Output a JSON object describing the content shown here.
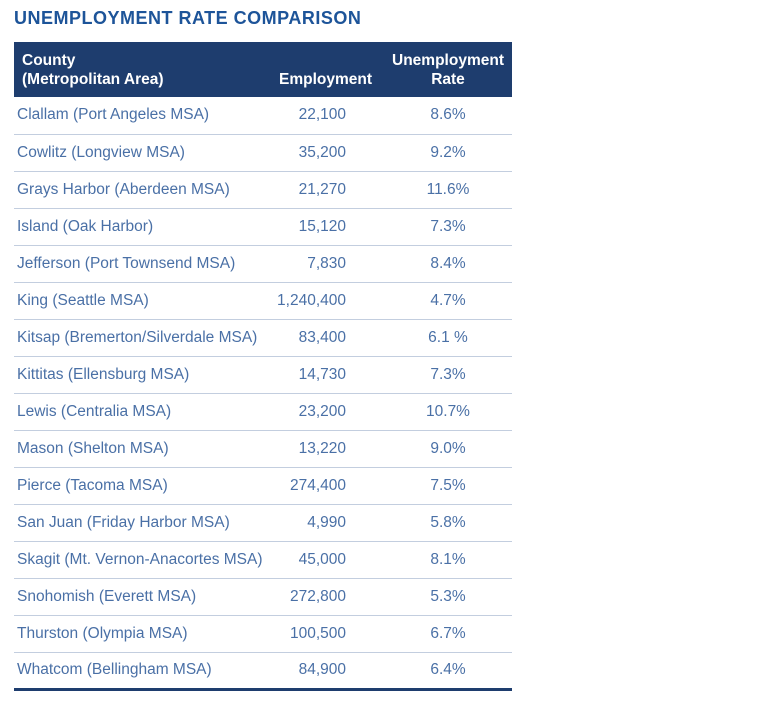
{
  "chart_data": {
    "type": "table",
    "title": "UNEMPLOYMENT RATE COMPARISON",
    "header": {
      "county_line1": "County",
      "county_line2": "(Metropolitan Area)",
      "employment": "Employment",
      "rate_line1": "Unemployment",
      "rate_line2": "Rate"
    },
    "columns": [
      "County (Metropolitan Area)",
      "Employment",
      "Unemployment Rate"
    ],
    "rows": [
      {
        "county": "Clallam (Port Angeles MSA)",
        "employment": "22,100",
        "rate": "8.6%"
      },
      {
        "county": "Cowlitz (Longview MSA)",
        "employment": "35,200",
        "rate": "9.2%"
      },
      {
        "county": "Grays Harbor (Aberdeen MSA)",
        "employment": "21,270",
        "rate": "11.6%"
      },
      {
        "county": "Island (Oak Harbor)",
        "employment": "15,120",
        "rate": "7.3%"
      },
      {
        "county": "Jefferson (Port Townsend MSA)",
        "employment": "7,830",
        "rate": "8.4%"
      },
      {
        "county": "King (Seattle MSA)",
        "employment": "1,240,400",
        "rate": "4.7%"
      },
      {
        "county": "Kitsap (Bremerton/Silverdale MSA)",
        "employment": "83,400",
        "rate": "6.1 %"
      },
      {
        "county": "Kittitas (Ellensburg MSA)",
        "employment": "14,730",
        "rate": "7.3%"
      },
      {
        "county": "Lewis (Centralia MSA)",
        "employment": "23,200",
        "rate": "10.7%"
      },
      {
        "county": "Mason (Shelton MSA)",
        "employment": "13,220",
        "rate": "9.0%"
      },
      {
        "county": "Pierce (Tacoma MSA)",
        "employment": "274,400",
        "rate": "7.5%"
      },
      {
        "county": "San Juan (Friday Harbor MSA)",
        "employment": "4,990",
        "rate": "5.8%"
      },
      {
        "county": "Skagit (Mt. Vernon-Anacortes MSA)",
        "employment": "45,000",
        "rate": "8.1%"
      },
      {
        "county": "Snohomish (Everett MSA)",
        "employment": "272,800",
        "rate": "5.3%"
      },
      {
        "county": "Thurston (Olympia MSA)",
        "employment": "100,500",
        "rate": "6.7%"
      },
      {
        "county": "Whatcom (Bellingham MSA)",
        "employment": "84,900",
        "rate": "6.4%"
      }
    ],
    "colors": {
      "header_bg": "#1e3d6e",
      "header_text": "#ffffff",
      "title_text": "#1d5499",
      "row_text": "#4a70a6",
      "divider": "#c3cedf",
      "bottom_border": "#1e3d6e"
    },
    "layout": {
      "legend": "none",
      "grid": "horizontal-row-dividers"
    }
  }
}
